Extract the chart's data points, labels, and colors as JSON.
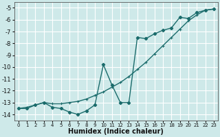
{
  "xlabel": "Humidex (Indice chaleur)",
  "ylabel": "",
  "background_color": "#cee9e9",
  "grid_color": "#ffffff",
  "line_color": "#1a6b6b",
  "xlim": [
    -0.5,
    23.5
  ],
  "ylim": [
    -14.5,
    -4.5
  ],
  "xticks": [
    0,
    1,
    2,
    3,
    4,
    5,
    6,
    7,
    8,
    9,
    10,
    11,
    12,
    13,
    14,
    15,
    16,
    17,
    18,
    19,
    20,
    21,
    22,
    23
  ],
  "yticks": [
    -5,
    -6,
    -7,
    -8,
    -9,
    -10,
    -11,
    -12,
    -13,
    -14
  ],
  "line1_x": [
    0,
    1,
    2,
    3,
    4,
    5,
    6,
    7,
    8,
    9,
    10,
    11,
    12,
    13,
    14,
    15,
    16,
    17,
    18,
    19,
    20,
    21,
    22,
    23
  ],
  "line1_y": [
    -13.5,
    -13.5,
    -13.2,
    -13.0,
    -13.4,
    -13.5,
    -13.8,
    -14.0,
    -13.7,
    -13.2,
    -9.8,
    -11.5,
    -13.0,
    -13.0,
    -7.5,
    -7.6,
    -7.2,
    -6.9,
    -6.7,
    -5.8,
    -5.9,
    -5.4,
    -5.2,
    -5.1
  ],
  "line2_x": [
    0,
    1,
    2,
    3,
    4,
    5,
    6,
    7,
    8,
    9,
    10,
    11,
    12,
    13,
    14,
    15,
    16,
    17,
    18,
    19,
    20,
    21,
    22,
    23
  ],
  "line2_y": [
    -13.5,
    -13.4,
    -13.2,
    -13.0,
    -13.1,
    -13.1,
    -13.0,
    -12.9,
    -12.7,
    -12.4,
    -12.1,
    -11.7,
    -11.3,
    -10.8,
    -10.2,
    -9.6,
    -8.9,
    -8.2,
    -7.5,
    -6.8,
    -6.1,
    -5.6,
    -5.2,
    -5.1
  ]
}
